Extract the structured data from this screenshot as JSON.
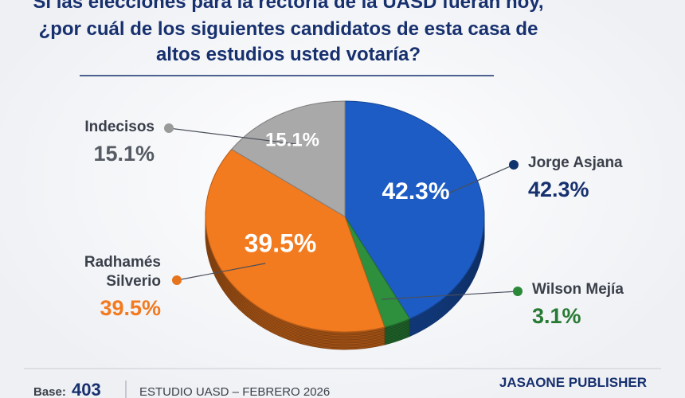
{
  "chart_data": {
    "type": "pie",
    "title_lines": [
      "Si las elecciones para la rectoría de la UASD fueran hoy,",
      "¿por cuál de los siguientes candidatos de esta casa de",
      "altos estudios usted votaría?"
    ],
    "categories": [
      "Jorge Asjana",
      "Wilson Mejía",
      "Radhamés Silverio",
      "Indecisos"
    ],
    "values": [
      42.3,
      3.1,
      39.5,
      15.1
    ],
    "value_labels": [
      "42.3%",
      "3.1%",
      "39.5%",
      "15.1%"
    ],
    "colors": [
      "#1c5cc4",
      "#2e8f3c",
      "#f27a1f",
      "#a9a9a9"
    ]
  },
  "footer": {
    "base_label": "Base:",
    "base_value": 403,
    "study": "ESTUDIO UASD – FEBRERO 2026",
    "publisher": "JASAONE PUBLISHER"
  }
}
